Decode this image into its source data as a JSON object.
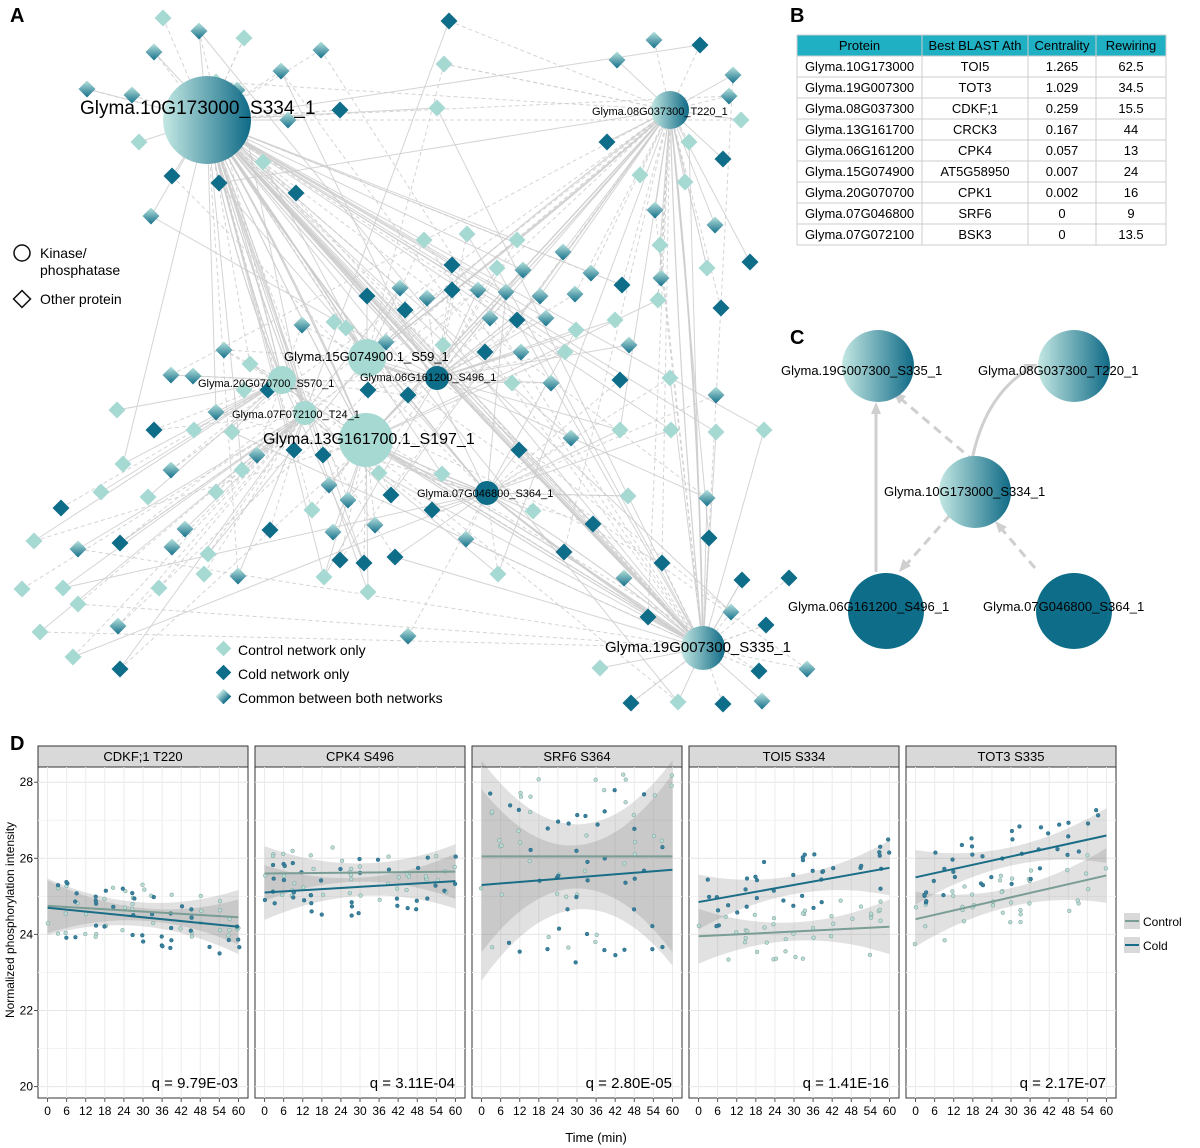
{
  "panels": {
    "a": "A",
    "b": "B",
    "c": "C",
    "d": "D"
  },
  "colors": {
    "control": "#a6d9d2",
    "cold": "#0e6d88",
    "common_light": "#a6d9d2",
    "common_dark": "#1c7893",
    "table_header": "#1fb0c4",
    "edge": "#c9c9c9"
  },
  "network_a": {
    "hub_labels": [
      "Glyma.10G173000_S334_1",
      "Glyma.08G037300_T220_1",
      "Glyma.15G074900.1_S59_1",
      "Glyma.20G070700_S570_1",
      "Glyma.06G161200_S496_1",
      "Glyma.07F072100_T24_1",
      "Glyma.13G161700.1_S197_1",
      "Glyma.07G046800_S364_1",
      "Glyma.19G007300_S335_1"
    ],
    "shape_legend": [
      "Kinase/",
      "phosphatase",
      "Other protein"
    ],
    "color_legend": [
      "Control network only",
      "Cold network only",
      "Common between both networks"
    ]
  },
  "table_b": {
    "headers": [
      "Protein",
      "Best BLAST Ath",
      "Centrality",
      "Rewiring"
    ],
    "rows": [
      [
        "Glyma.10G173000",
        "TOI5",
        "1.265",
        "62.5"
      ],
      [
        "Glyma.19G007300",
        "TOT3",
        "1.029",
        "34.5"
      ],
      [
        "Glyma.08G037300",
        "CDKF;1",
        "0.259",
        "15.5"
      ],
      [
        "Glyma.13G161700",
        "CRCK3",
        "0.167",
        "44"
      ],
      [
        "Glyma.06G161200",
        "CPK4",
        "0.057",
        "13"
      ],
      [
        "Glyma.15G074900",
        "AT5G58950",
        "0.007",
        "24"
      ],
      [
        "Glyma.20G070700",
        "CPK1",
        "0.002",
        "16"
      ],
      [
        "Glyma.07G046800",
        "SRF6",
        "0",
        "9"
      ],
      [
        "Glyma.07G072100",
        "BSK3",
        "0",
        "13.5"
      ]
    ]
  },
  "network_c": {
    "labels": [
      "Glyma.19G007300_S335_1",
      "Glyma.08G037300_T220_1",
      "Glyma.10G173000_S334_1",
      "Glyma.06G161200_S496_1",
      "Glyma.07G046800_S364_1"
    ]
  },
  "chart_data": {
    "type": "scatter",
    "ylabel": "Normalized phosphorylation intensity",
    "xlabel": "Time (min)",
    "ylim": [
      19.7,
      28.4
    ],
    "xlim": [
      -3,
      63
    ],
    "yticks": [
      20,
      22,
      24,
      26,
      28
    ],
    "xticks": [
      0,
      6,
      12,
      18,
      24,
      30,
      36,
      42,
      48,
      54,
      60
    ],
    "legend": [
      "Control",
      "Cold"
    ],
    "legend_position": "right",
    "grid": true,
    "facets": [
      {
        "title": "CDKF;1 T220",
        "q": "q = 9.79E-03",
        "control_fit": [
          24.75,
          24.45
        ],
        "cold_fit": [
          24.7,
          24.2
        ]
      },
      {
        "title": "CPK4 S496",
        "q": "q = 3.11E-04",
        "control_fit": [
          25.6,
          25.65
        ],
        "cold_fit": [
          25.1,
          25.4
        ]
      },
      {
        "title": "SRF6 S364",
        "q": "q = 2.80E-05",
        "control_fit": [
          26.05,
          26.05
        ],
        "cold_fit": [
          25.3,
          25.7
        ]
      },
      {
        "title": "TOI5 S334",
        "q": "q = 1.41E-16",
        "control_fit": [
          23.95,
          24.2
        ],
        "cold_fit": [
          24.85,
          25.75
        ]
      },
      {
        "title": "TOT3 S335",
        "q": "q = 2.17E-07",
        "control_fit": [
          24.4,
          25.55
        ],
        "cold_fit": [
          25.5,
          26.6
        ]
      }
    ]
  }
}
